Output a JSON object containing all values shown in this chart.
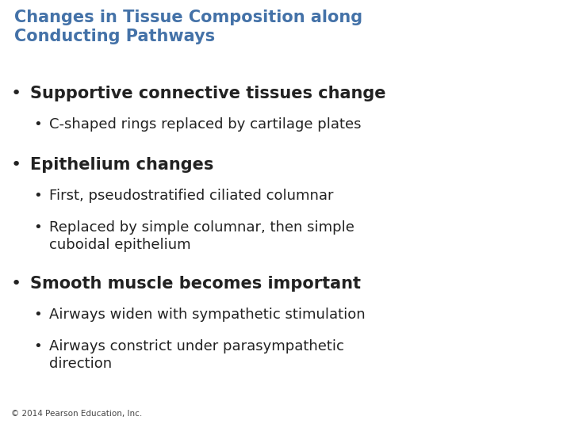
{
  "title_line1": "Changes in Tissue Composition along",
  "title_line2": "Conducting Pathways",
  "title_color": "#4472a8",
  "background_color": "#ffffff",
  "bullet1_text": "Supportive connective tissues change",
  "bullet1_sub1": "C-shaped rings replaced by cartilage plates",
  "bullet2_text": "Epithelium changes",
  "bullet2_sub1": "First, pseudostratified ciliated columnar",
  "bullet2_sub2_line1": "Replaced by simple columnar, then simple",
  "bullet2_sub2_line2": "cuboidal epithelium",
  "bullet3_text": "Smooth muscle becomes important",
  "bullet3_sub1": "Airways widen with sympathetic stimulation",
  "bullet3_sub2_line1": "Airways constrict under parasympathetic",
  "bullet3_sub2_line2": "direction",
  "footer": "© 2014 Pearson Education, Inc.",
  "main_bullet_color": "#222222",
  "sub_bullet_color": "#222222",
  "title_fontsize": 15,
  "main_bullet_fontsize": 15,
  "sub_bullet_fontsize": 13,
  "footer_fontsize": 7.5
}
